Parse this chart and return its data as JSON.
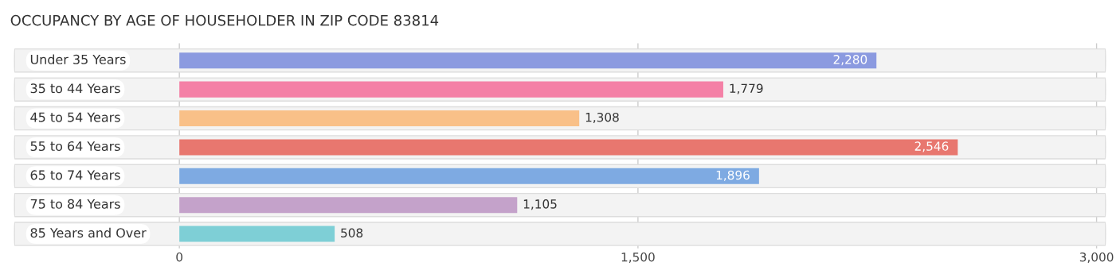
{
  "chart_data": {
    "type": "bar",
    "orientation": "horizontal",
    "title": "OCCUPANCY BY AGE OF HOUSEHOLDER IN ZIP CODE 83814",
    "categories": [
      "Under 35 Years",
      "35 to 44 Years",
      "45 to 54 Years",
      "55 to 64 Years",
      "65 to 74 Years",
      "75 to 84 Years",
      "85 Years and Over"
    ],
    "values": [
      2280,
      1779,
      1308,
      2546,
      1896,
      1105,
      508
    ],
    "colors": [
      "#8b9ae0",
      "#f480a6",
      "#f9c088",
      "#e8776f",
      "#7eaae2",
      "#c4a2ca",
      "#7ecfd6"
    ],
    "value_labels": [
      "2,280",
      "1,779",
      "1,308",
      "2,546",
      "1,896",
      "1,105",
      "508"
    ],
    "xlim": [
      -550,
      3040
    ],
    "xticks": [
      0,
      {
        "value": 1500,
        "label": "1,500"
      },
      {
        "value": 3000,
        "label": "3,000"
      }
    ],
    "grid": "x"
  }
}
